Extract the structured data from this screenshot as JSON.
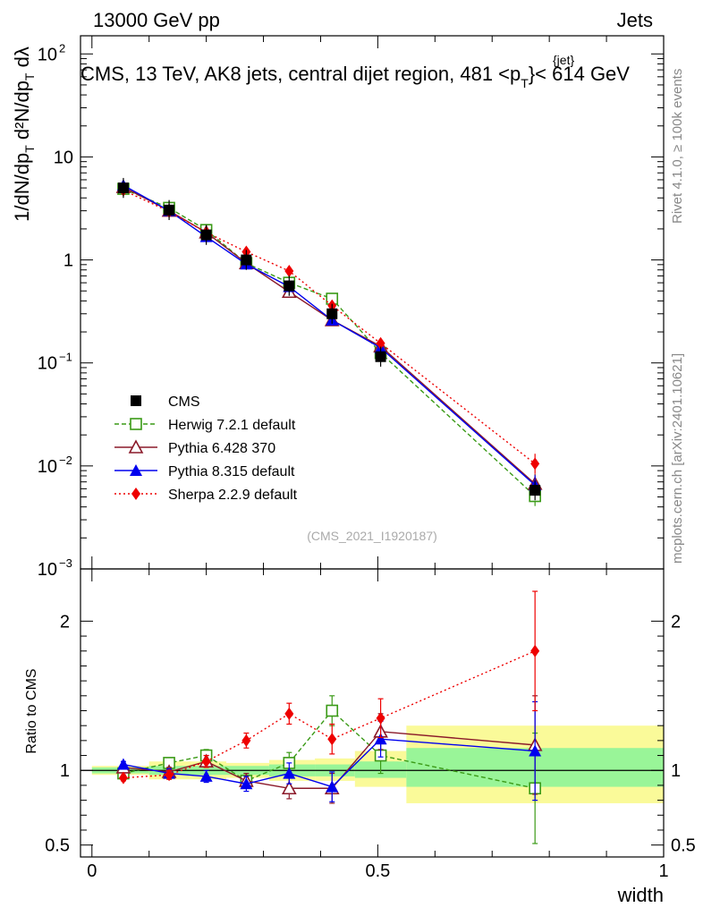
{
  "header": {
    "left": "13000 GeV pp",
    "right": "Jets",
    "title": "CMS, 13 TeV, AK8 jets, central dijet region, 481 <p",
    "title_sup": "{jet}",
    "title_sub": "T",
    "title_tail": "}< 614 GeV"
  },
  "side_text": {
    "rivet": "Rivet 4.1.0, ≥ 100k events",
    "mcplots": "mcplots.cern.ch [arXiv:2401.10621]"
  },
  "watermark": "(CMS_2021_I1920187)",
  "colors": {
    "cms": "#000000",
    "herwig": "#3a9a16",
    "pythia6": "#8b1a2a",
    "pythia8": "#0000ee",
    "sherpa": "#ee0000",
    "band_inner": "#99f598",
    "band_outer": "#fafa99"
  },
  "chart_data": [
    {
      "type": "line",
      "panel": "main",
      "yscale": "log",
      "ylabel": "1/dN/dpT · d²N/dpT dλ",
      "ylim": [
        0.001,
        150
      ],
      "xlim": [
        -0.02,
        1.0
      ],
      "y_ticks": [
        {
          "v": 0.001,
          "label": "10",
          "exp": "−3"
        },
        {
          "v": 0.01,
          "label": "10",
          "exp": "−2"
        },
        {
          "v": 0.1,
          "label": "10",
          "exp": "−1"
        },
        {
          "v": 1,
          "label": "1",
          "exp": ""
        },
        {
          "v": 10,
          "label": "10",
          "exp": ""
        },
        {
          "v": 100,
          "label": "10",
          "exp": "2"
        }
      ],
      "x": [
        0.055,
        0.135,
        0.2,
        0.27,
        0.345,
        0.42,
        0.505,
        0.775
      ],
      "series": [
        {
          "key": "cms",
          "name": "CMS",
          "marker": "square-filled",
          "values": [
            5.0,
            3.05,
            1.75,
            1.0,
            0.56,
            0.3,
            0.115,
            0.0058
          ]
        },
        {
          "key": "herwig",
          "name": "Herwig 7.2.1 default",
          "marker": "square-open",
          "dash": "5,3",
          "values": [
            4.9,
            3.2,
            1.95,
            0.93,
            0.6,
            0.42,
            0.125,
            0.0051
          ]
        },
        {
          "key": "pythia6",
          "name": "Pythia 6.428 370",
          "marker": "triangle-open",
          "dash": "",
          "values": [
            5.1,
            3.0,
            1.85,
            0.93,
            0.49,
            0.26,
            0.145,
            0.0067
          ]
        },
        {
          "key": "pythia8",
          "name": "Pythia 8.315 default",
          "marker": "triangle-filled",
          "dash": "",
          "values": [
            5.3,
            3.0,
            1.68,
            0.91,
            0.55,
            0.26,
            0.14,
            0.0065
          ]
        },
        {
          "key": "sherpa",
          "name": "Sherpa 2.2.9 default",
          "marker": "diamond-filled",
          "dash": "2,3",
          "values": [
            4.75,
            2.95,
            1.85,
            1.2,
            0.78,
            0.36,
            0.155,
            0.0105
          ]
        }
      ]
    },
    {
      "type": "line",
      "panel": "ratio",
      "ylabel": "Ratio to CMS",
      "xlabel": "width",
      "ylim": [
        0.42,
        2.35
      ],
      "xlim": [
        -0.02,
        1.0
      ],
      "y_ticks": [
        0.5,
        1,
        2
      ],
      "x_ticks": [
        {
          "v": 0,
          "label": "0"
        },
        {
          "v": 0.5,
          "label": "0.5"
        },
        {
          "v": 1,
          "label": "1"
        }
      ],
      "x": [
        0.055,
        0.135,
        0.2,
        0.27,
        0.345,
        0.42,
        0.505,
        0.775
      ],
      "bands": [
        {
          "x0": 0.0,
          "x1": 0.1,
          "lo_inner": 0.98,
          "hi_inner": 1.02,
          "lo_outer": 0.97,
          "hi_outer": 1.03
        },
        {
          "x0": 0.1,
          "x1": 0.17,
          "lo_inner": 0.97,
          "hi_inner": 1.03,
          "lo_outer": 0.94,
          "hi_outer": 1.06
        },
        {
          "x0": 0.17,
          "x1": 0.235,
          "lo_inner": 0.97,
          "hi_inner": 1.03,
          "lo_outer": 0.94,
          "hi_outer": 1.06
        },
        {
          "x0": 0.235,
          "x1": 0.31,
          "lo_inner": 0.97,
          "hi_inner": 1.03,
          "lo_outer": 0.95,
          "hi_outer": 1.05
        },
        {
          "x0": 0.31,
          "x1": 0.39,
          "lo_inner": 0.96,
          "hi_inner": 1.04,
          "lo_outer": 0.93,
          "hi_outer": 1.07
        },
        {
          "x0": 0.39,
          "x1": 0.46,
          "lo_inner": 0.96,
          "hi_inner": 1.04,
          "lo_outer": 0.93,
          "hi_outer": 1.08
        },
        {
          "x0": 0.46,
          "x1": 0.55,
          "lo_inner": 0.95,
          "hi_inner": 1.06,
          "lo_outer": 0.89,
          "hi_outer": 1.13
        },
        {
          "x0": 0.55,
          "x1": 1.0,
          "lo_inner": 0.89,
          "hi_inner": 1.15,
          "lo_outer": 0.78,
          "hi_outer": 1.3
        }
      ],
      "series": [
        {
          "key": "herwig",
          "name": "Herwig 7.2.1 default",
          "values": [
            0.98,
            1.05,
            1.1,
            0.93,
            1.05,
            1.4,
            1.1,
            0.88
          ],
          "errors": [
            0.02,
            0.03,
            0.04,
            0.05,
            0.07,
            0.1,
            0.12,
            0.37
          ]
        },
        {
          "key": "pythia6",
          "name": "Pythia 6.428 370",
          "values": [
            1.02,
            0.99,
            1.06,
            0.93,
            0.88,
            0.88,
            1.26,
            1.17
          ],
          "errors": [
            0.02,
            0.03,
            0.04,
            0.05,
            0.07,
            0.1,
            0.12,
            0.33
          ]
        },
        {
          "key": "pythia8",
          "name": "Pythia 8.315 default",
          "values": [
            1.04,
            0.98,
            0.96,
            0.91,
            0.98,
            0.89,
            1.21,
            1.13
          ],
          "errors": [
            0.02,
            0.03,
            0.04,
            0.05,
            0.07,
            0.1,
            0.12,
            0.33
          ]
        },
        {
          "key": "sherpa",
          "name": "Sherpa 2.2.9 default",
          "values": [
            0.95,
            0.97,
            1.06,
            1.2,
            1.38,
            1.21,
            1.35,
            1.8
          ],
          "errors": [
            0.02,
            0.03,
            0.04,
            0.05,
            0.07,
            0.1,
            0.13,
            0.4
          ]
        }
      ]
    }
  ]
}
